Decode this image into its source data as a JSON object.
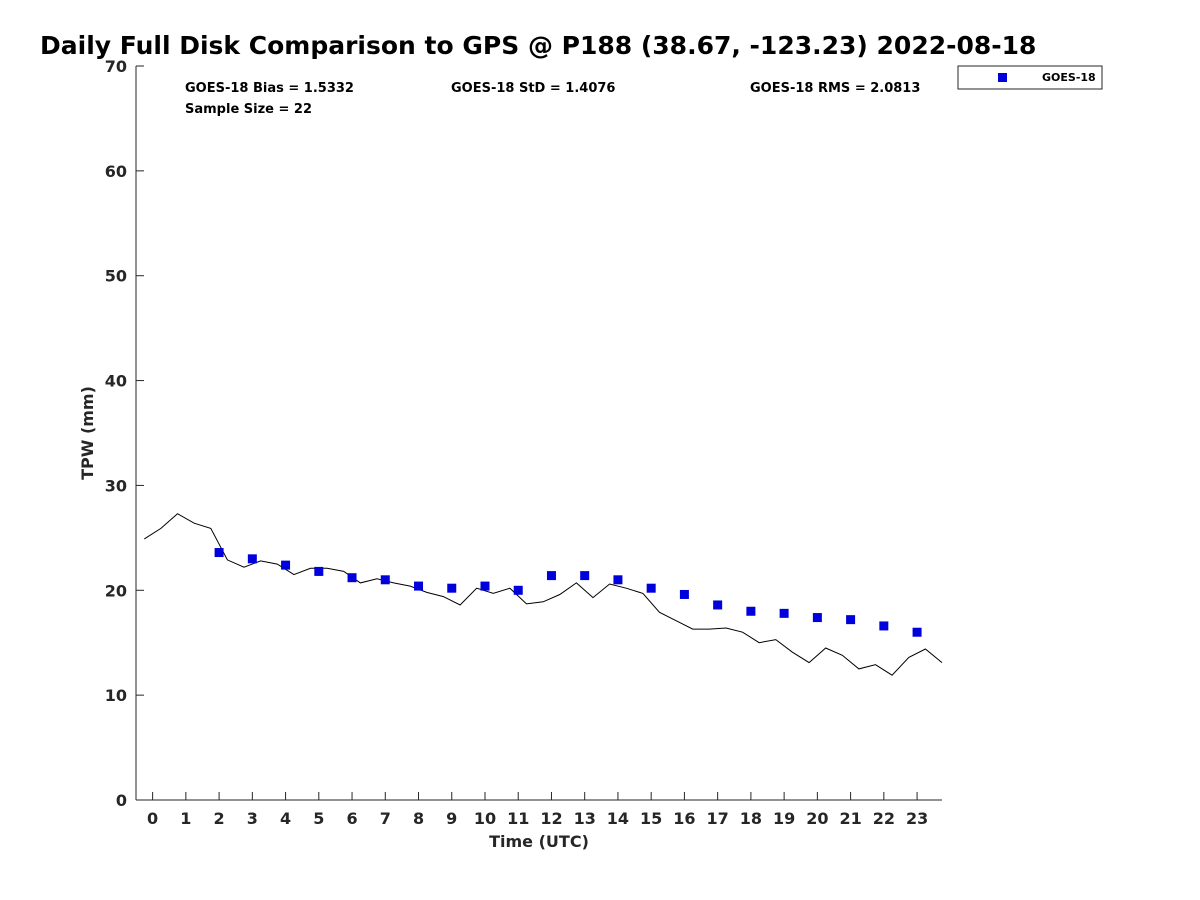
{
  "chart_data": {
    "type": "scatter",
    "title": "Daily Full Disk Comparison to GPS @ P188 (38.67, -123.23) 2022-08-18",
    "xlabel": "Time (UTC)",
    "ylabel": "TPW (mm)",
    "xlim": [
      -0.5,
      23.75
    ],
    "ylim": [
      0,
      70
    ],
    "x_ticks": [
      0,
      1,
      2,
      3,
      4,
      5,
      6,
      7,
      8,
      9,
      10,
      11,
      12,
      13,
      14,
      15,
      16,
      17,
      18,
      19,
      20,
      21,
      22,
      23
    ],
    "y_ticks": [
      0,
      10,
      20,
      30,
      40,
      50,
      60,
      70
    ],
    "grid": false,
    "legend": {
      "placement": "top-right",
      "entries": [
        "GOES-18"
      ]
    },
    "stats": {
      "bias": "GOES-18 Bias = 1.5332",
      "std": "GOES-18 StD = 1.4076",
      "rms": "GOES-18 RMS = 2.0813",
      "sample_size": "Sample Size = 22"
    },
    "series": [
      {
        "name": "GOES-18",
        "kind": "markers",
        "color": "#0000dd",
        "x": [
          2,
          3,
          4,
          5,
          6,
          7,
          8,
          9,
          10,
          11,
          12,
          13,
          14,
          15,
          16,
          17,
          18,
          19,
          20,
          21,
          22,
          23
        ],
        "y": [
          23.6,
          23.0,
          22.4,
          21.8,
          21.2,
          21.0,
          20.4,
          20.2,
          20.4,
          20.0,
          21.4,
          21.4,
          21.0,
          20.2,
          19.6,
          18.6,
          18.0,
          17.8,
          17.4,
          17.2,
          16.6,
          16.0
        ]
      },
      {
        "kind": "line",
        "color": "#000000",
        "x": [
          -0.25,
          0.25,
          0.75,
          1.25,
          1.75,
          2.25,
          2.75,
          3.25,
          3.75,
          4.25,
          4.75,
          5.25,
          5.75,
          6.25,
          6.75,
          7.25,
          7.75,
          8.25,
          8.75,
          9.25,
          9.75,
          10.25,
          10.75,
          11.25,
          11.75,
          12.25,
          12.75,
          13.25,
          13.75,
          14.25,
          14.75,
          15.25,
          15.75,
          16.25,
          16.75,
          17.25,
          17.75,
          18.25,
          18.75,
          19.25,
          19.75,
          20.25,
          20.75,
          21.25,
          21.75,
          22.25,
          22.75,
          23.25,
          23.75
        ],
        "y": [
          24.9,
          25.9,
          27.3,
          26.4,
          25.9,
          22.9,
          22.2,
          22.8,
          22.5,
          21.5,
          22.1,
          22.1,
          21.8,
          20.7,
          21.1,
          20.7,
          20.4,
          19.8,
          19.4,
          18.6,
          20.2,
          19.7,
          20.2,
          18.7,
          18.9,
          19.6,
          20.7,
          19.3,
          20.6,
          20.2,
          19.7,
          17.9,
          17.1,
          16.3,
          16.3,
          16.4,
          16.0,
          15.0,
          15.3,
          14.1,
          13.1,
          14.5,
          13.8,
          12.5,
          12.9,
          11.9,
          13.6,
          14.4,
          13.1
        ]
      }
    ]
  }
}
